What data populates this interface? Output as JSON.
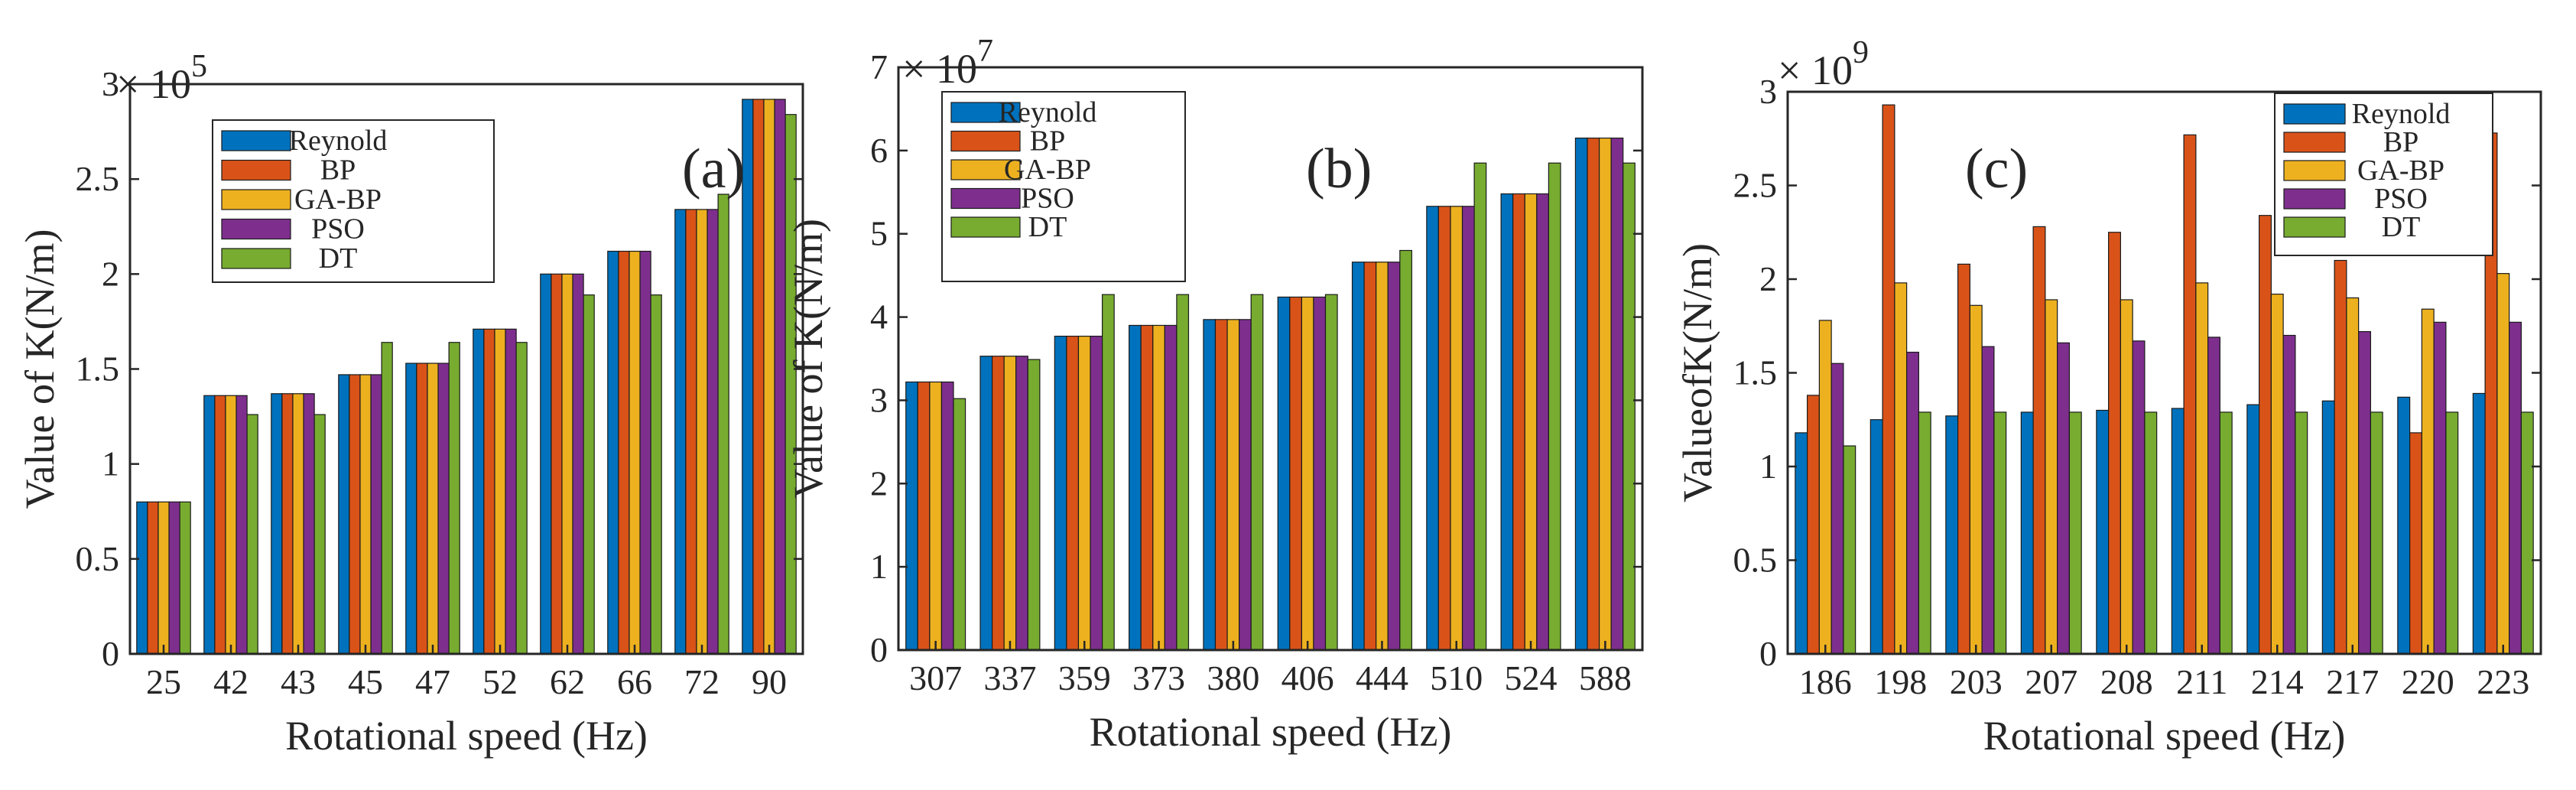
{
  "colors": {
    "Reynold": "#0072bd",
    "BP": "#d95319",
    "GA-BP": "#edb120",
    "PSO": "#7e2f8e",
    "DT": "#77ac30"
  },
  "chart_data": [
    {
      "type": "bar",
      "panel_label": "(a)",
      "exponent_label": "× 10",
      "exponent_power": "5",
      "xlabel": "Rotational speed (Hz)",
      "ylabel": "Value of K(N/m)",
      "ylim": [
        0,
        3
      ],
      "yticks": [
        0,
        0.5,
        1,
        1.5,
        2,
        2.5,
        3
      ],
      "ytick_labels": [
        "0",
        "0.5",
        "1",
        "1.5",
        "2",
        "2.5",
        "3"
      ],
      "categories": [
        "25",
        "42",
        "43",
        "45",
        "47",
        "52",
        "62",
        "66",
        "72",
        "90"
      ],
      "legend_position": "top-left",
      "series": [
        {
          "name": "Reynold",
          "values": [
            0.8,
            1.36,
            1.37,
            1.47,
            1.53,
            1.71,
            2.0,
            2.12,
            2.34,
            2.92
          ]
        },
        {
          "name": "BP",
          "values": [
            0.8,
            1.36,
            1.37,
            1.47,
            1.53,
            1.71,
            2.0,
            2.12,
            2.34,
            2.92
          ]
        },
        {
          "name": "GA-BP",
          "values": [
            0.8,
            1.36,
            1.37,
            1.47,
            1.53,
            1.71,
            2.0,
            2.12,
            2.34,
            2.92
          ]
        },
        {
          "name": "PSO",
          "values": [
            0.8,
            1.36,
            1.37,
            1.47,
            1.53,
            1.71,
            2.0,
            2.12,
            2.34,
            2.92
          ]
        },
        {
          "name": "DT",
          "values": [
            0.8,
            1.26,
            1.26,
            1.64,
            1.64,
            1.64,
            1.89,
            1.89,
            2.42,
            2.84
          ]
        }
      ]
    },
    {
      "type": "bar",
      "panel_label": "(b)",
      "exponent_label": "× 10",
      "exponent_power": "7",
      "xlabel": "Rotational speed (Hz)",
      "ylabel": "Value of K(N/m)",
      "ylim": [
        0,
        7
      ],
      "yticks": [
        0,
        1,
        2,
        3,
        4,
        5,
        6,
        7
      ],
      "ytick_labels": [
        "0",
        "1",
        "2",
        "3",
        "4",
        "5",
        "6",
        "7"
      ],
      "categories": [
        "307",
        "337",
        "359",
        "373",
        "380",
        "406",
        "444",
        "510",
        "524",
        "588"
      ],
      "legend_position": "top-left",
      "series": [
        {
          "name": "Reynold",
          "values": [
            3.22,
            3.53,
            3.77,
            3.9,
            3.97,
            4.24,
            4.66,
            5.33,
            5.48,
            6.15
          ]
        },
        {
          "name": "BP",
          "values": [
            3.22,
            3.53,
            3.77,
            3.9,
            3.97,
            4.24,
            4.66,
            5.33,
            5.48,
            6.15
          ]
        },
        {
          "name": "GA-BP",
          "values": [
            3.22,
            3.53,
            3.77,
            3.9,
            3.97,
            4.24,
            4.66,
            5.33,
            5.48,
            6.15
          ]
        },
        {
          "name": "PSO",
          "values": [
            3.22,
            3.53,
            3.77,
            3.9,
            3.97,
            4.24,
            4.66,
            5.33,
            5.48,
            6.15
          ]
        },
        {
          "name": "DT",
          "values": [
            3.02,
            3.49,
            4.27,
            4.27,
            4.27,
            4.27,
            4.8,
            5.85,
            5.85,
            5.85
          ]
        }
      ]
    },
    {
      "type": "bar",
      "panel_label": "(c)",
      "exponent_label": "× 10",
      "exponent_power": "9",
      "xlabel": "Rotational speed (Hz)",
      "ylabel": "ValueofK(N/m)",
      "ylim": [
        0,
        3
      ],
      "yticks": [
        0,
        0.5,
        1,
        1.5,
        2,
        2.5,
        3
      ],
      "ytick_labels": [
        "0",
        "0.5",
        "1",
        "1.5",
        "2",
        "2.5",
        "3"
      ],
      "categories": [
        "186",
        "198",
        "203",
        "207",
        "208",
        "211",
        "214",
        "217",
        "220",
        "223"
      ],
      "legend_position": "top-right",
      "series": [
        {
          "name": "Reynold",
          "values": [
            1.18,
            1.25,
            1.27,
            1.29,
            1.3,
            1.31,
            1.33,
            1.35,
            1.37,
            1.39
          ]
        },
        {
          "name": "BP",
          "values": [
            1.38,
            2.93,
            2.08,
            2.28,
            2.25,
            2.77,
            2.34,
            2.1,
            1.18,
            2.78
          ]
        },
        {
          "name": "GA-BP",
          "values": [
            1.78,
            1.98,
            1.86,
            1.89,
            1.89,
            1.98,
            1.92,
            1.9,
            1.84,
            2.03
          ]
        },
        {
          "name": "PSO",
          "values": [
            1.55,
            1.61,
            1.64,
            1.66,
            1.67,
            1.69,
            1.7,
            1.72,
            1.77,
            1.77
          ]
        },
        {
          "name": "DT",
          "values": [
            1.11,
            1.29,
            1.29,
            1.29,
            1.29,
            1.29,
            1.29,
            1.29,
            1.29,
            1.29
          ]
        }
      ]
    }
  ]
}
